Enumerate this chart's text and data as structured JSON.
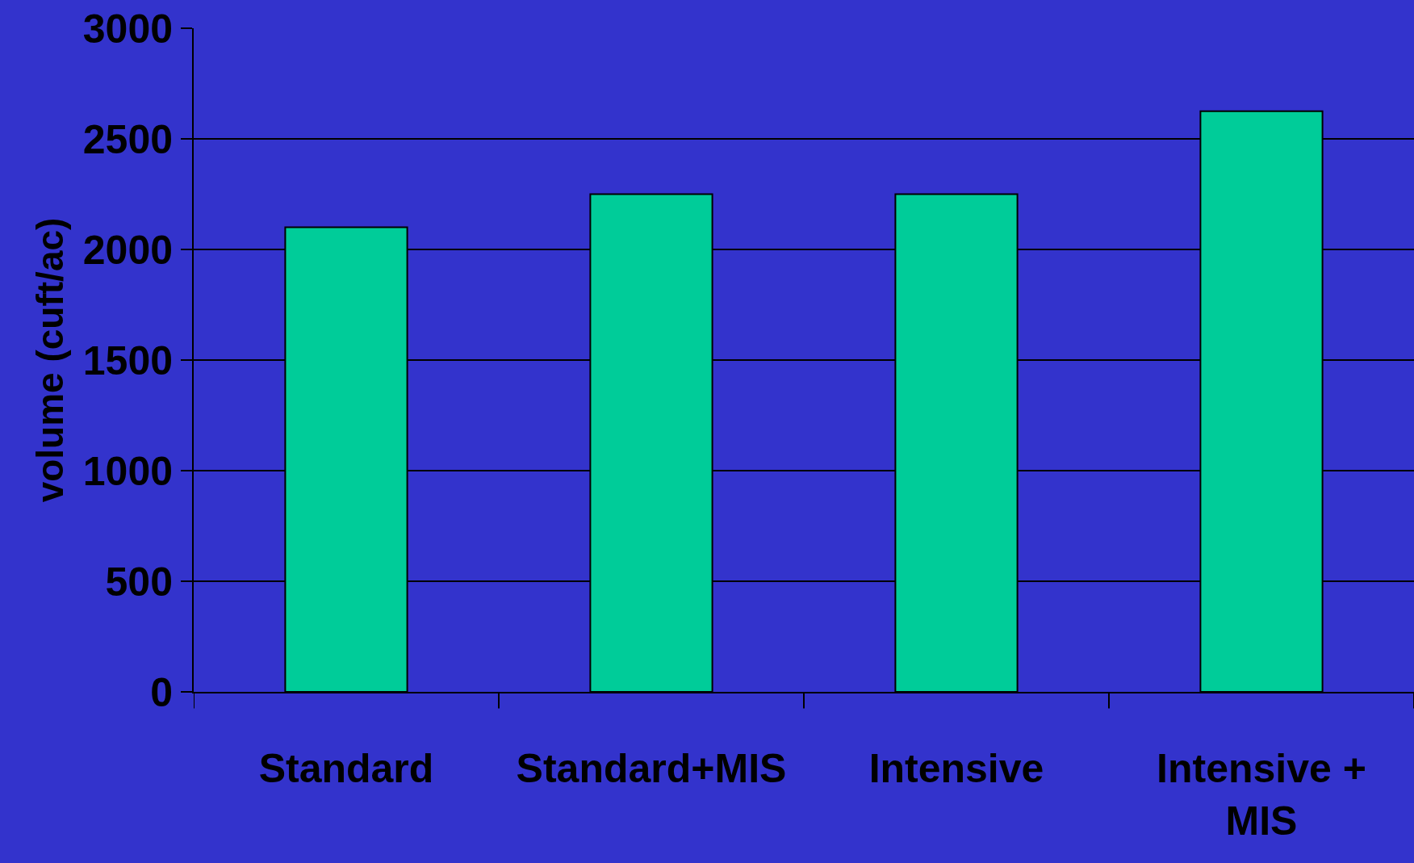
{
  "chart_data": {
    "type": "bar",
    "ylabel": "volume (cuft/ac)",
    "categories": [
      "Standard",
      "Standard+MIS",
      "Intensive",
      "Intensive +\nMIS"
    ],
    "values": [
      2100,
      2250,
      2250,
      2625
    ],
    "color": "#00cc99",
    "ylim": [
      0,
      3000
    ],
    "yticks": [
      0,
      500,
      1000,
      1500,
      2000,
      2500,
      3000
    ],
    "grid": "y"
  }
}
